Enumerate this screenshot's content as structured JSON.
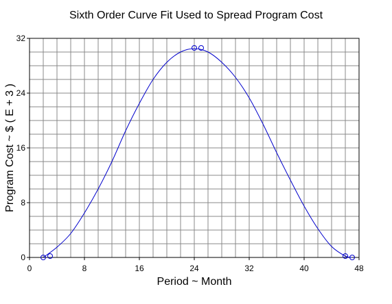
{
  "chart_data": {
    "type": "line",
    "title": "Sixth Order Curve Fit Used to Spread Program Cost",
    "xlabel": "Period ~ Month",
    "ylabel": "Program Cost ~ $  ( E + 3 )",
    "xlim": [
      0,
      48
    ],
    "ylim": [
      0,
      32
    ],
    "xticks": [
      "0",
      "8",
      "16",
      "24",
      "32",
      "40",
      "48"
    ],
    "yticks": [
      "0",
      "8",
      "16",
      "24",
      "32"
    ],
    "grid": true,
    "series": [
      {
        "style": "curve",
        "x": [
          2,
          4,
          6,
          8,
          10,
          12,
          14,
          16,
          18,
          20,
          22,
          24,
          26,
          28,
          30,
          32,
          34,
          36,
          38,
          40,
          42,
          44,
          46,
          47
        ],
        "y": [
          0,
          1.5,
          3.5,
          6.5,
          10,
          14,
          18.5,
          22.5,
          26,
          28.5,
          30,
          30.5,
          30,
          28.5,
          26.3,
          23.3,
          19.5,
          15.3,
          11.3,
          7.5,
          4.2,
          1.6,
          0.2,
          0
        ]
      },
      {
        "style": "markers",
        "x": [
          2,
          3,
          24,
          25,
          46,
          47
        ],
        "y": [
          0,
          0.2,
          30.6,
          30.6,
          0.2,
          0
        ]
      }
    ],
    "colors": {
      "curve": "#0000cc",
      "grid": "#888888",
      "axes": "#000000"
    }
  }
}
